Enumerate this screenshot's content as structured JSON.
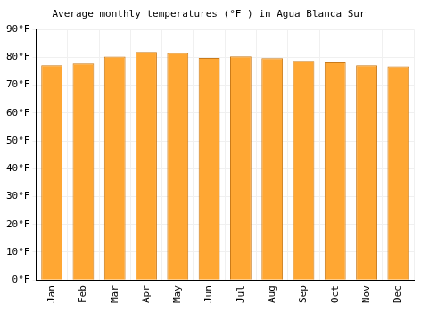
{
  "chart_data": {
    "type": "bar",
    "title": "Average monthly temperatures (°F ) in Agua Blanca Sur",
    "categories": [
      "Jan",
      "Feb",
      "Mar",
      "Apr",
      "May",
      "Jun",
      "Jul",
      "Aug",
      "Sep",
      "Oct",
      "Nov",
      "Dec"
    ],
    "values": [
      77.2,
      77.8,
      80.3,
      82.0,
      81.6,
      79.8,
      80.4,
      79.7,
      78.8,
      78.2,
      77.2,
      76.8
    ],
    "color": "#ffa733",
    "ylim": [
      0,
      90
    ],
    "yticks": [
      {
        "value": 0,
        "label": "0°F"
      },
      {
        "value": 10,
        "label": "10°F"
      },
      {
        "value": 20,
        "label": "20°F"
      },
      {
        "value": 30,
        "label": "30°F"
      },
      {
        "value": 40,
        "label": "40°F"
      },
      {
        "value": 50,
        "label": "50°F"
      },
      {
        "value": 60,
        "label": "60°F"
      },
      {
        "value": 70,
        "label": "70°F"
      },
      {
        "value": 80,
        "label": "80°F"
      },
      {
        "value": 90,
        "label": "90°F"
      }
    ],
    "grid": true
  }
}
